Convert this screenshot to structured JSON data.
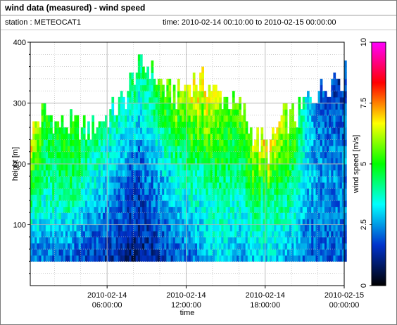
{
  "window": {
    "title": "wind data (measured) - wind speed",
    "station_label": "station : METEOCAT1",
    "time_label": "time: 2010-02-14 00:10:00 to 2010-02-15 00:00:00"
  },
  "colors": {
    "colorbar_stops": [
      "#000000",
      "#0033cc",
      "#00ffff",
      "#00ff00",
      "#ffff00",
      "#ff0000",
      "#ff00ff"
    ],
    "grid": "#b4b4b4",
    "axis": "#000000"
  },
  "chart_data": {
    "type": "heatmap",
    "title": "wind data (measured) - wind speed",
    "xlabel": "time",
    "ylabel": "height [m]",
    "colorbar_label": "wind speed [m/s]",
    "x_range": [
      "2010-02-14 00:10",
      "2010-02-15 00:00"
    ],
    "ylim": [
      0,
      400
    ],
    "clim": [
      0,
      10
    ],
    "x_ticks": [
      {
        "t": "2010-02-14 06:00",
        "label_date": "2010-02-14",
        "label_time": "06:00:00"
      },
      {
        "t": "2010-02-14 12:00",
        "label_date": "2010-02-14",
        "label_time": "12:00:00"
      },
      {
        "t": "2010-02-14 18:00",
        "label_date": "2010-02-14",
        "label_time": "18:00:00"
      },
      {
        "t": "2010-02-15 00:00",
        "label_date": "2010-02-15",
        "label_time": "00:00:00"
      }
    ],
    "y_ticks": [
      100,
      200,
      300,
      400
    ],
    "colorbar_ticks": [
      {
        "value": 0,
        "label": "0"
      },
      {
        "value": 2.5,
        "label": "2.5"
      },
      {
        "value": 5,
        "label": "5"
      },
      {
        "value": 7.5,
        "label": "7.5"
      },
      {
        "value": 10,
        "label": "10"
      }
    ],
    "grid": true,
    "data_height_range": [
      40,
      400
    ],
    "height_step": 10,
    "time_step_minutes": 10,
    "wind_speed_profile_by_hour": [
      {
        "hour": 0,
        "top": 250,
        "speed_low": 2.0,
        "speed_mid": 4.5,
        "speed_top": 7.0
      },
      {
        "hour": 1,
        "top": 280,
        "speed_low": 2.2,
        "speed_mid": 4.0,
        "speed_top": 5.0
      },
      {
        "hour": 2,
        "top": 260,
        "speed_low": 2.0,
        "speed_mid": 4.0,
        "speed_top": 5.0
      },
      {
        "hour": 3,
        "top": 260,
        "speed_low": 2.0,
        "speed_mid": 4.5,
        "speed_top": 5.0
      },
      {
        "hour": 4,
        "top": 250,
        "speed_low": 1.8,
        "speed_mid": 3.5,
        "speed_top": 4.5
      },
      {
        "hour": 5,
        "top": 260,
        "speed_low": 1.5,
        "speed_mid": 3.0,
        "speed_top": 4.5
      },
      {
        "hour": 6,
        "top": 280,
        "speed_low": 1.5,
        "speed_mid": 2.8,
        "speed_top": 4.0
      },
      {
        "hour": 7,
        "top": 300,
        "speed_low": 1.2,
        "speed_mid": 2.5,
        "speed_top": 4.0
      },
      {
        "hour": 8,
        "top": 350,
        "speed_low": 1.0,
        "speed_mid": 2.0,
        "speed_top": 4.5
      },
      {
        "hour": 9,
        "top": 355,
        "speed_low": 1.2,
        "speed_mid": 2.5,
        "speed_top": 4.5
      },
      {
        "hour": 10,
        "top": 320,
        "speed_low": 1.5,
        "speed_mid": 3.0,
        "speed_top": 5.5
      },
      {
        "hour": 11,
        "top": 310,
        "speed_low": 2.0,
        "speed_mid": 3.5,
        "speed_top": 6.0
      },
      {
        "hour": 12,
        "top": 330,
        "speed_low": 2.2,
        "speed_mid": 4.0,
        "speed_top": 6.5
      },
      {
        "hour": 13,
        "top": 330,
        "speed_low": 2.5,
        "speed_mid": 4.0,
        "speed_top": 7.0
      },
      {
        "hour": 14,
        "top": 310,
        "speed_low": 3.0,
        "speed_mid": 4.5,
        "speed_top": 6.5
      },
      {
        "hour": 15,
        "top": 300,
        "speed_low": 3.0,
        "speed_mid": 4.0,
        "speed_top": 5.5
      },
      {
        "hour": 16,
        "top": 280,
        "speed_low": 2.5,
        "speed_mid": 4.0,
        "speed_top": 5.5
      },
      {
        "hour": 17,
        "top": 240,
        "speed_low": 3.0,
        "speed_mid": 4.5,
        "speed_top": 6.5
      },
      {
        "hour": 18,
        "top": 220,
        "speed_low": 3.0,
        "speed_mid": 4.0,
        "speed_top": 7.0
      },
      {
        "hour": 19,
        "top": 270,
        "speed_low": 2.8,
        "speed_mid": 4.5,
        "speed_top": 6.5
      },
      {
        "hour": 20,
        "top": 270,
        "speed_low": 2.5,
        "speed_mid": 4.0,
        "speed_top": 5.5
      },
      {
        "hour": 21,
        "top": 300,
        "speed_low": 2.0,
        "speed_mid": 3.0,
        "speed_top": 3.0
      },
      {
        "hour": 22,
        "top": 320,
        "speed_low": 2.0,
        "speed_mid": 2.5,
        "speed_top": 2.0
      },
      {
        "hour": 23,
        "top": 340,
        "speed_low": 2.0,
        "speed_mid": 2.5,
        "speed_top": 1.5
      }
    ]
  }
}
